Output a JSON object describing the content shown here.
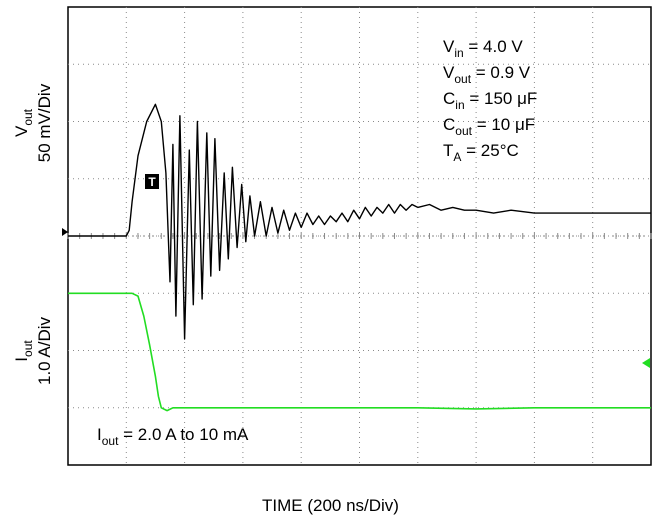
{
  "chart_data": {
    "type": "line",
    "title": "",
    "xlabel": "TIME (200 ns/Div)",
    "x_divisions": 10,
    "y_divisions": 8,
    "xlim": [
      0,
      10
    ],
    "ylim": [
      0,
      8
    ],
    "grid": true,
    "channels": [
      {
        "name": "Vout",
        "axis_label_main": "V",
        "axis_label_sub": "out",
        "axis_label_scale": "50 mV/Div",
        "color": "#000000",
        "x": [
          0,
          1.0,
          1.05,
          1.1,
          1.2,
          1.35,
          1.5,
          1.6,
          1.68,
          1.75,
          1.8,
          1.85,
          1.92,
          2.0,
          2.08,
          2.15,
          2.22,
          2.3,
          2.38,
          2.45,
          2.52,
          2.6,
          2.68,
          2.75,
          2.82,
          2.9,
          2.98,
          3.05,
          3.12,
          3.2,
          3.3,
          3.4,
          3.5,
          3.6,
          3.7,
          3.8,
          3.9,
          4.0,
          4.1,
          4.2,
          4.3,
          4.4,
          4.5,
          4.6,
          4.7,
          4.8,
          4.9,
          5.0,
          5.1,
          5.2,
          5.3,
          5.4,
          5.5,
          5.6,
          5.7,
          5.8,
          5.9,
          6.0,
          6.2,
          6.4,
          6.6,
          6.8,
          7.0,
          7.3,
          7.6,
          8.0,
          8.5,
          9.0,
          9.5,
          10.0
        ],
        "y": [
          4.0,
          4.0,
          4.1,
          4.6,
          5.4,
          6.0,
          6.3,
          6.0,
          5.1,
          3.2,
          5.6,
          2.6,
          6.1,
          2.2,
          5.5,
          2.8,
          6.0,
          2.9,
          5.8,
          3.3,
          5.7,
          3.4,
          5.1,
          3.6,
          5.2,
          3.8,
          4.9,
          3.9,
          4.7,
          4.0,
          4.6,
          4.0,
          4.5,
          4.05,
          4.45,
          4.1,
          4.4,
          4.15,
          4.4,
          4.2,
          4.35,
          4.2,
          4.35,
          4.25,
          4.4,
          4.25,
          4.45,
          4.3,
          4.5,
          4.35,
          4.5,
          4.4,
          4.55,
          4.4,
          4.55,
          4.45,
          4.55,
          4.5,
          4.55,
          4.45,
          4.5,
          4.45,
          4.45,
          4.4,
          4.45,
          4.4,
          4.4,
          4.4,
          4.4,
          4.4
        ]
      },
      {
        "name": "Iout",
        "axis_label_main": "I",
        "axis_label_sub": "out",
        "axis_label_scale": "1.0 A/Div",
        "color": "#22dd22",
        "x": [
          0,
          1.1,
          1.2,
          1.3,
          1.4,
          1.5,
          1.55,
          1.6,
          1.7,
          1.8,
          2.0,
          3.0,
          4.0,
          5.0,
          6.0,
          7.0,
          8.0,
          9.0,
          10.0
        ],
        "y": [
          3.0,
          3.0,
          2.95,
          2.6,
          2.1,
          1.55,
          1.2,
          1.0,
          0.95,
          1.0,
          1.0,
          1.0,
          1.0,
          1.0,
          1.0,
          0.98,
          1.0,
          1.0,
          1.0
        ]
      }
    ],
    "conditions": [
      {
        "main": "V",
        "sub": "in",
        "rest": " = 4.0 V"
      },
      {
        "main": "V",
        "sub": "out",
        "rest": " = 0.9 V"
      },
      {
        "main": "C",
        "sub": "in",
        "rest": " = 150 μF"
      },
      {
        "main": "C",
        "sub": "out",
        "rest": " = 10 μF"
      },
      {
        "main": "T",
        "sub": "A",
        "rest": " = 25°C"
      }
    ],
    "annotation": {
      "main": "I",
      "sub": "out",
      "rest": " = 2.0 A to 10 mA"
    },
    "trigger_marker": "T"
  }
}
